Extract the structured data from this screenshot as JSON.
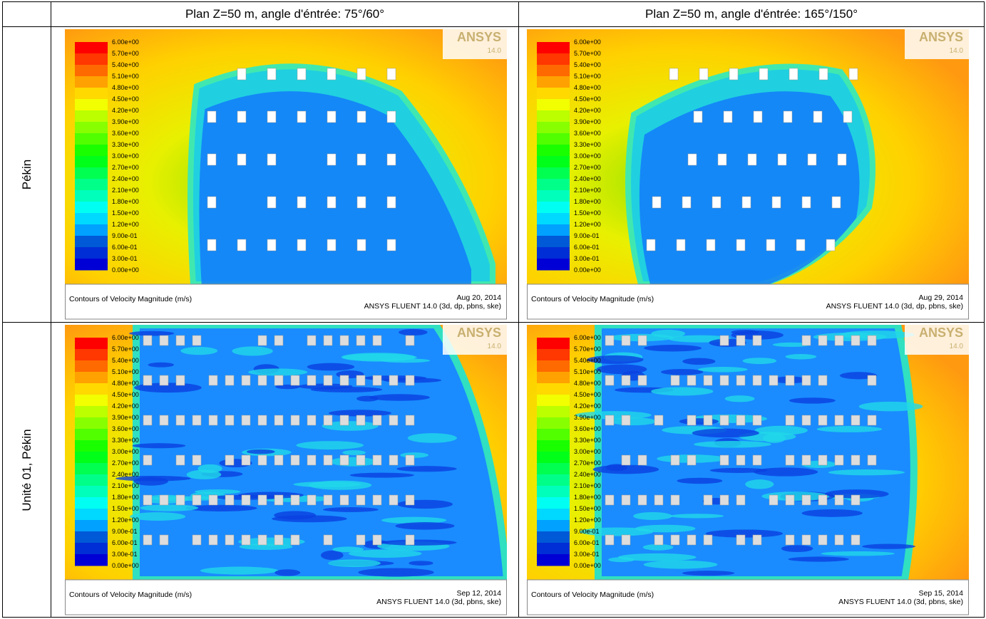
{
  "table": {
    "headers": [
      "Plan Z=50 m, angle d'éntrée: 75°/60°",
      "Plan Z=50 m, angle d'éntrée: 165°/150°"
    ],
    "rows": [
      {
        "label": "Pékin",
        "panels": [
          {
            "caption": "Contours of Velocity Magnitude (m/s)",
            "date": "Aug 20, 2014",
            "solver": "ANSYS FLUENT 14.0 (3d, dp, pbns, ske)"
          },
          {
            "caption": "Contours of Velocity Magnitude (m/s)",
            "date": "Aug 29, 2014",
            "solver": "ANSYS FLUENT 14.0 (3d, dp, pbns, ske)"
          }
        ]
      },
      {
        "label": "Unité 01,  Pékin",
        "panels": [
          {
            "caption": "Contours of Velocity Magnitude (m/s)",
            "date": "Sep 12, 2014",
            "solver": "ANSYS FLUENT 14.0 (3d, pbns, ske)"
          },
          {
            "caption": "Contours of Velocity Magnitude (m/s)",
            "date": "Sep 15, 2014",
            "solver": "ANSYS FLUENT 14.0 (3d, pbns, ske)"
          }
        ]
      }
    ]
  },
  "legend": [
    "6.00e+00",
    "5.70e+00",
    "5.40e+00",
    "5.10e+00",
    "4.80e+00",
    "4.50e+00",
    "4.20e+00",
    "3.90e+00",
    "3.60e+00",
    "3.30e+00",
    "3.00e+00",
    "2.70e+00",
    "2.40e+00",
    "2.10e+00",
    "1.80e+00",
    "1.50e+00",
    "1.20e+00",
    "9.00e-01",
    "6.00e-01",
    "3.00e-01",
    "0.00e+00"
  ],
  "logo": {
    "brand": "ANSYS",
    "version": "14.0"
  }
}
